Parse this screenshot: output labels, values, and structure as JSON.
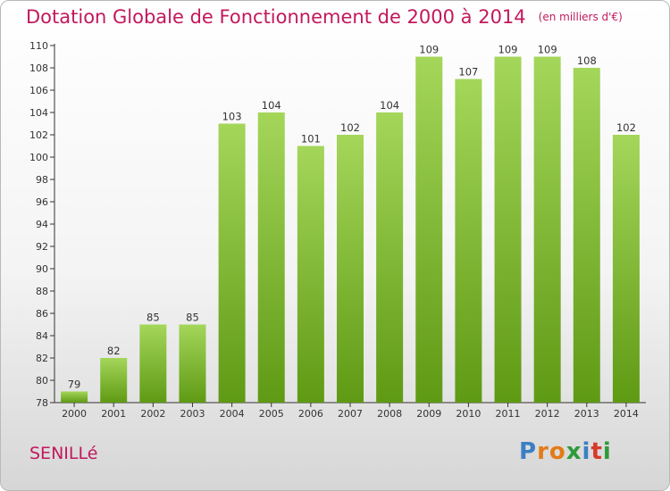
{
  "header": {
    "title": "Dotation Globale de Fonctionnement de 2000 à 2014",
    "subtitle": "(en milliers d'€)"
  },
  "commune": "SENILLé",
  "brand": {
    "letters": [
      "P",
      "r",
      "o",
      "x",
      "i",
      "t",
      "i"
    ],
    "colors": [
      "#3b7fc4",
      "#e37b16",
      "#e37b16",
      "#2e9a3a",
      "#3b7fc4",
      "#d83a2a",
      "#2e9a3a"
    ]
  },
  "colors": {
    "bar_light": "#a4d65a",
    "bar_dark": "#5f9a14",
    "accent": "#c2185b"
  },
  "chart_data": {
    "type": "bar",
    "categories": [
      "2000",
      "2001",
      "2002",
      "2003",
      "2004",
      "2005",
      "2006",
      "2007",
      "2008",
      "2009",
      "2010",
      "2011",
      "2012",
      "2013",
      "2014"
    ],
    "values": [
      79,
      82,
      85,
      85,
      103,
      104,
      101,
      102,
      104,
      109,
      107,
      109,
      109,
      108,
      102
    ],
    "ylim": [
      78,
      110
    ],
    "yticks": [
      78,
      80,
      82,
      84,
      86,
      88,
      90,
      92,
      94,
      96,
      98,
      100,
      102,
      104,
      106,
      108,
      110
    ],
    "grid": false,
    "data_labels": true
  }
}
